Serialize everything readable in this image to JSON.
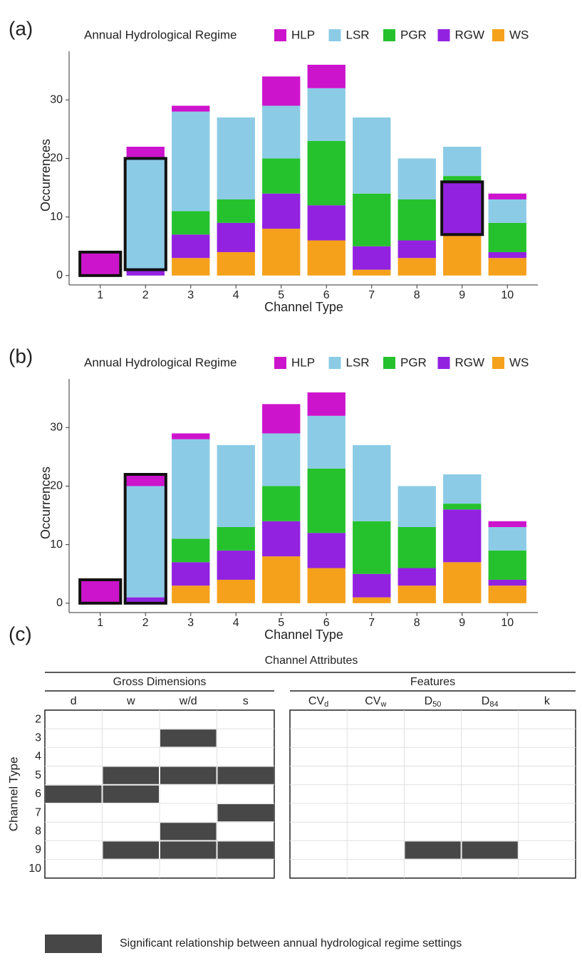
{
  "chart_data": [
    {
      "type": "bar",
      "stacked": true,
      "panel_label": "(a)",
      "legend_title": "Annual Hydrological Regime",
      "x_label": "Channel Type",
      "y_label": "Occurrences",
      "categories": [
        "1",
        "2",
        "3",
        "4",
        "5",
        "6",
        "7",
        "8",
        "9",
        "10"
      ],
      "series": [
        {
          "name": "HLP",
          "color": "#cc14cc",
          "values": [
            4,
            2,
            1,
            0,
            5,
            4,
            0,
            0,
            0,
            1
          ]
        },
        {
          "name": "LSR",
          "color": "#8ccbe6",
          "values": [
            0,
            19,
            17,
            14,
            9,
            9,
            13,
            7,
            5,
            4
          ]
        },
        {
          "name": "PGR",
          "color": "#26c22e",
          "values": [
            0,
            0,
            4,
            4,
            6,
            11,
            9,
            7,
            1,
            5
          ]
        },
        {
          "name": "RGW",
          "color": "#9222e0",
          "values": [
            0,
            1,
            4,
            5,
            6,
            6,
            4,
            3,
            9,
            1
          ]
        },
        {
          "name": "WS",
          "color": "#f5a11c",
          "values": [
            0,
            0,
            3,
            4,
            8,
            6,
            1,
            3,
            7,
            3
          ]
        }
      ],
      "ylim": [
        -1.6,
        38.3
      ],
      "yticks": [
        0,
        10,
        20,
        30
      ],
      "highlights": [
        {
          "category": 0,
          "series": [
            "HLP"
          ]
        },
        {
          "category": 1,
          "series": [
            "LSR"
          ]
        },
        {
          "category": 8,
          "series": [
            "RGW"
          ]
        }
      ]
    },
    {
      "type": "bar",
      "stacked": true,
      "panel_label": "(b)",
      "legend_title": "Annual Hydrological Regime",
      "x_label": "Channel Type",
      "y_label": "Occurrences",
      "categories": [
        "1",
        "2",
        "3",
        "4",
        "5",
        "6",
        "7",
        "8",
        "9",
        "10"
      ],
      "series": [
        {
          "name": "HLP",
          "color": "#cc14cc",
          "values": [
            4,
            2,
            1,
            0,
            5,
            4,
            0,
            0,
            0,
            1
          ]
        },
        {
          "name": "LSR",
          "color": "#8ccbe6",
          "values": [
            0,
            19,
            17,
            14,
            9,
            9,
            13,
            7,
            5,
            4
          ]
        },
        {
          "name": "PGR",
          "color": "#26c22e",
          "values": [
            0,
            0,
            4,
            4,
            6,
            11,
            9,
            7,
            1,
            5
          ]
        },
        {
          "name": "RGW",
          "color": "#9222e0",
          "values": [
            0,
            1,
            4,
            5,
            6,
            6,
            4,
            3,
            9,
            1
          ]
        },
        {
          "name": "WS",
          "color": "#f5a11c",
          "values": [
            0,
            0,
            3,
            4,
            8,
            6,
            1,
            3,
            7,
            3
          ]
        }
      ],
      "ylim": [
        -1.6,
        38.3
      ],
      "yticks": [
        0,
        10,
        20,
        30
      ],
      "highlights": [
        {
          "category": 0,
          "series": [
            "HLP"
          ]
        },
        {
          "category": 1,
          "series": [
            "RGW",
            "LSR",
            "HLP"
          ]
        }
      ]
    }
  ],
  "table": {
    "panel_label": "(c)",
    "title": "Channel Attributes",
    "row_title": "Channel Type",
    "groups": [
      {
        "name": "Gross Dimensions",
        "columns": [
          "d",
          "w",
          "w/d",
          "s"
        ]
      },
      {
        "name": "Features",
        "columns": [
          {
            "base": "CV",
            "sub": "d"
          },
          {
            "base": "CV",
            "sub": "w"
          },
          {
            "base": "D",
            "sub": "50"
          },
          {
            "base": "D",
            "sub": "84"
          },
          "k"
        ]
      }
    ],
    "rows": [
      {
        "label": "2",
        "significant": [
          false,
          false,
          false,
          false,
          false,
          false,
          false,
          false,
          false
        ]
      },
      {
        "label": "3",
        "significant": [
          false,
          false,
          true,
          false,
          false,
          false,
          false,
          false,
          false
        ]
      },
      {
        "label": "4",
        "significant": [
          false,
          false,
          false,
          false,
          false,
          false,
          false,
          false,
          false
        ]
      },
      {
        "label": "5",
        "significant": [
          false,
          true,
          true,
          true,
          false,
          false,
          false,
          false,
          false
        ]
      },
      {
        "label": "6",
        "significant": [
          true,
          true,
          false,
          false,
          false,
          false,
          false,
          false,
          false
        ]
      },
      {
        "label": "7",
        "significant": [
          false,
          false,
          false,
          true,
          false,
          false,
          false,
          false,
          false
        ]
      },
      {
        "label": "8",
        "significant": [
          false,
          false,
          true,
          false,
          false,
          false,
          false,
          false,
          false
        ]
      },
      {
        "label": "9",
        "significant": [
          false,
          true,
          true,
          true,
          false,
          false,
          true,
          true,
          false
        ]
      },
      {
        "label": "10",
        "significant": [
          false,
          false,
          false,
          false,
          false,
          false,
          false,
          false,
          false
        ]
      }
    ],
    "key_label": "Significant relationship between annual hydrological regime settings",
    "significant_color": "#474747"
  }
}
